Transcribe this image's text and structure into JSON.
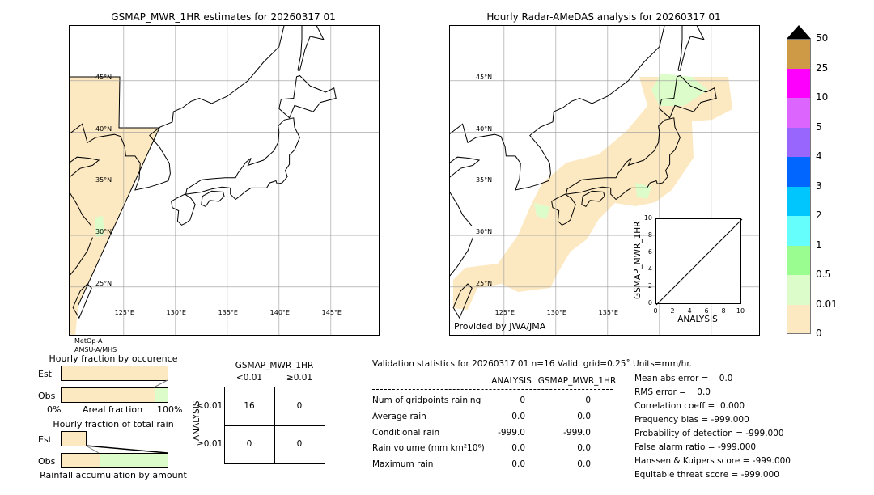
{
  "left_map": {
    "title": "GSMAP_MWR_1HR estimates for 20260317 01",
    "lat_labels": [
      "45°N",
      "40°N",
      "35°N",
      "30°N",
      "25°N"
    ],
    "lon_labels": [
      "125°E",
      "130°E",
      "135°E",
      "140°E",
      "145°E"
    ],
    "sensor_line1": "MetOp-A",
    "sensor_line2": "AMSU-A/MHS"
  },
  "right_map": {
    "title": "Hourly Radar-AMeDAS analysis for 20260317 01",
    "lat_labels": [
      "45°N",
      "40°N",
      "35°N",
      "30°N",
      "25°N"
    ],
    "lon_labels": [
      "125°E",
      "130°E",
      "135°E"
    ],
    "credit": "Provided by JWA/JMA"
  },
  "inset_scatter": {
    "xlabel": "ANALYSIS",
    "ylabel": "GSMAP_MWR_1HR",
    "ticks": [
      "0",
      "2",
      "4",
      "6",
      "8",
      "10"
    ],
    "xlim": [
      0,
      10
    ],
    "ylim": [
      0,
      10
    ]
  },
  "colorbar": {
    "labels": [
      "0",
      "0.01",
      "0.5",
      "1",
      "2",
      "3",
      "4",
      "5",
      "10",
      "25",
      "50"
    ],
    "colors": [
      "#fde9c1",
      "#dcfdca",
      "#99fd8f",
      "#66fdfd",
      "#00c6fd",
      "#0066fd",
      "#9966fd",
      "#dc66fd",
      "#fd00fd",
      "#cf9a45"
    ],
    "extend_color": "#000000"
  },
  "occurrence": {
    "title": "Hourly fraction by occurence",
    "est": "Est",
    "obs": "Obs",
    "x0": "0%",
    "xmid": "Areal fraction",
    "x1": "100%",
    "est_fraction": 1.0,
    "obs_fraction": 0.87
  },
  "total_rain": {
    "title": "Hourly fraction of total rain",
    "est": "Est",
    "obs": "Obs",
    "xlabel": "Rainfall accumulation by amount",
    "est_fraction": 0.23,
    "obs_fraction": 0.36
  },
  "contingency": {
    "col_title": "GSMAP_MWR_1HR",
    "col_labels": [
      "<0.01",
      "≥0.01"
    ],
    "row_title": "ANALYSIS",
    "row_labels": [
      "<0.01",
      "≥0.01"
    ],
    "cells": [
      [
        "16",
        "0"
      ],
      [
        "0",
        "0"
      ]
    ]
  },
  "stats": {
    "title": "Validation statistics for 20260317 01  n=16 Valid. grid=0.25˚ Units=mm/hr.",
    "col_headers": [
      "ANALYSIS",
      "GSMAP_MWR_1HR"
    ],
    "rows": [
      {
        "label": "Num of gridpoints raining",
        "a": "0",
        "g": "0"
      },
      {
        "label": "Average rain",
        "a": "0.0",
        "g": "0.0"
      },
      {
        "label": "Conditional rain",
        "a": "-999.0",
        "g": "-999.0"
      },
      {
        "label": "Rain volume (mm km²10⁶)",
        "a": "0.0",
        "g": "0.0"
      },
      {
        "label": "Maximum rain",
        "a": "0.0",
        "g": "0.0"
      }
    ],
    "scores": [
      "Mean abs error =    0.0",
      "RMS error =    0.0",
      "Correlation coeff =  0.000",
      "Frequency bias = -999.000",
      "Probability of detection = -999.000",
      "False alarm ratio = -999.000",
      "Hanssen & Kuipers score = -999.000",
      "Equitable threat score = -999.000"
    ]
  }
}
